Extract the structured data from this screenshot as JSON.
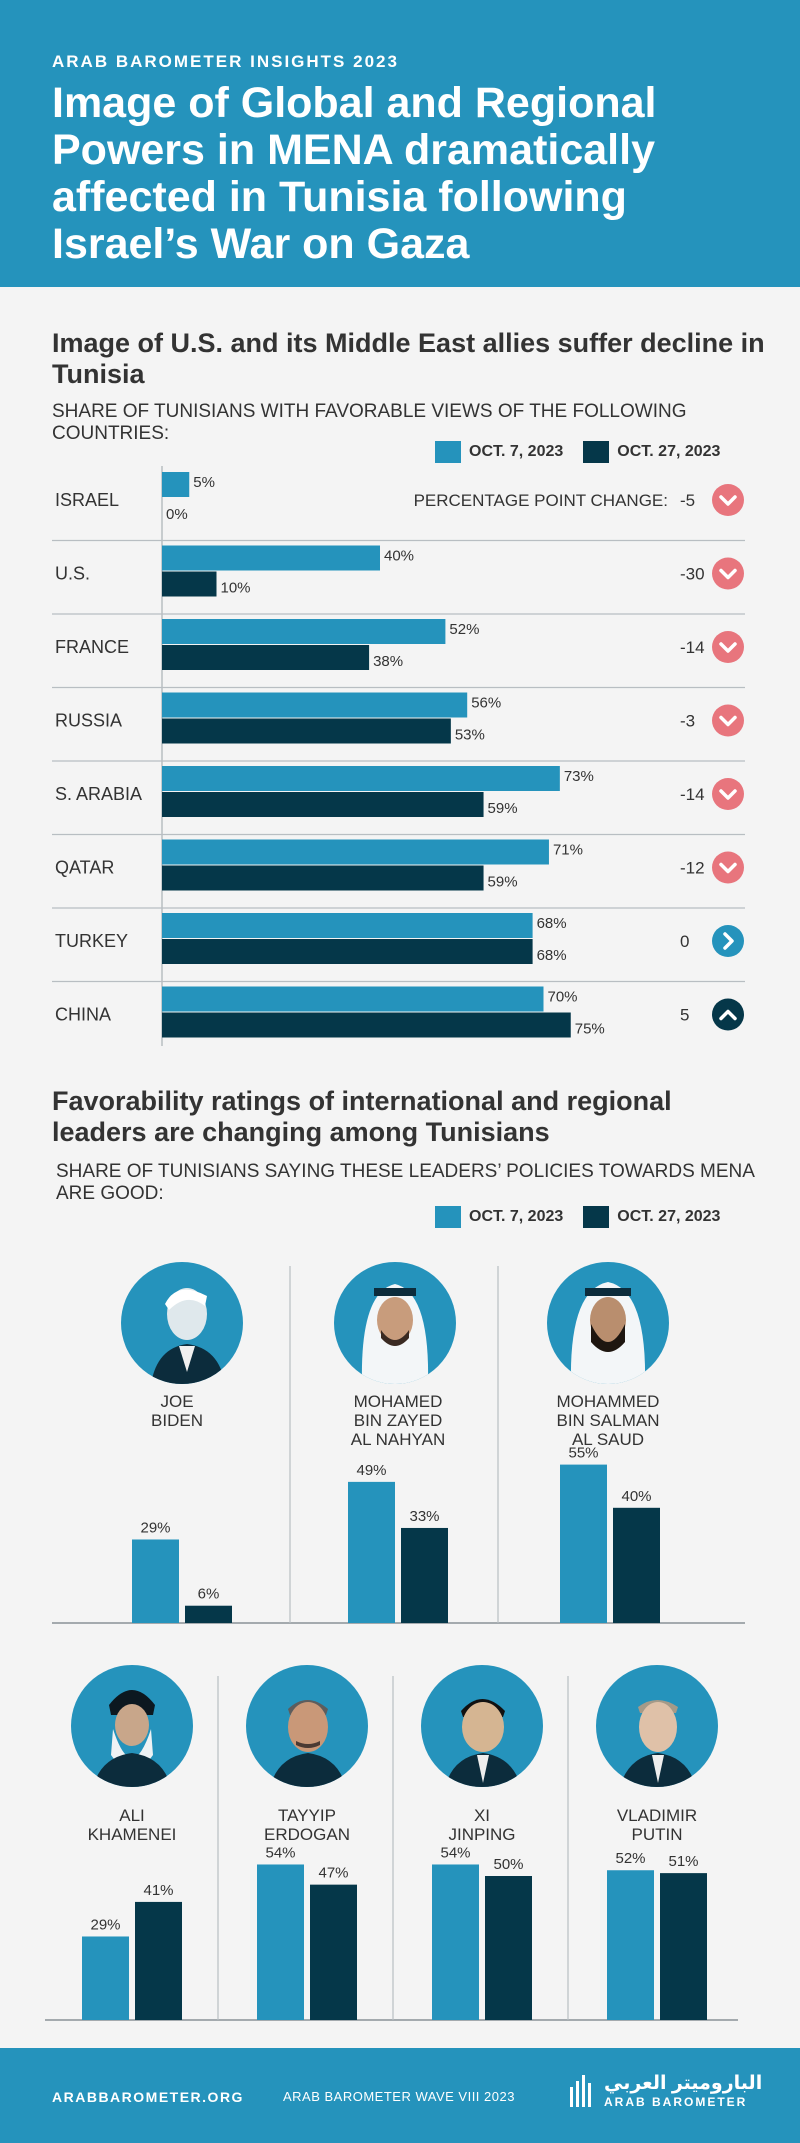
{
  "header": {
    "kicker": "ARAB BAROMETER INSIGHTS 2023",
    "title": "Image of Global and Regional Powers in MENA dramatically affected in Tunisia following Israel’s War on Gaza"
  },
  "section1": {
    "title": "Image of U.S. and its Middle East allies suffer decline in Tunisia",
    "subtitle": "Share of Tunisians with favorable views of the following countries:",
    "change_label": "PERCENTAGE POINT CHANGE:"
  },
  "section2": {
    "title": "Favorability ratings of international and regional leaders are changing among Tunisians",
    "subtitle": "Share of Tunisians saying these leaders’ policies towards MENA are good:"
  },
  "legend": {
    "series1": "OCT. 7, 2023",
    "series2": "OCT. 27, 2023"
  },
  "colors": {
    "oct7": "#2593bc",
    "oct27": "#053749",
    "down": "#e8757d",
    "neutral": "#2593bc",
    "up": "#053749"
  },
  "chart_data": [
    {
      "type": "bar",
      "orientation": "horizontal",
      "categories": [
        "ISRAEL",
        "U.S.",
        "FRANCE",
        "RUSSIA",
        "S. ARABIA",
        "QATAR",
        "TURKEY",
        "CHINA"
      ],
      "series": [
        {
          "name": "OCT. 7, 2023",
          "values": [
            5,
            40,
            52,
            56,
            73,
            71,
            68,
            70
          ]
        },
        {
          "name": "OCT. 27, 2023",
          "values": [
            0,
            10,
            38,
            53,
            59,
            59,
            68,
            75
          ]
        }
      ],
      "change": [
        -5,
        -30,
        -14,
        -3,
        -14,
        -12,
        0,
        5
      ],
      "change_icons": [
        "chevron-down-icon",
        "chevron-down-icon",
        "chevron-down-icon",
        "chevron-down-icon",
        "chevron-down-icon",
        "chevron-down-icon",
        "chevron-right-icon",
        "chevron-up-icon"
      ],
      "value_suffix": "%",
      "xlim": [
        0,
        100
      ]
    },
    {
      "type": "bar",
      "categories": [
        "JOE BIDEN",
        "MOHAMED BIN ZAYED AL NAHYAN",
        "MOHAMMED BIN SALMAN AL SAUD"
      ],
      "series": [
        {
          "name": "OCT. 7, 2023",
          "values": [
            29,
            49,
            55
          ]
        },
        {
          "name": "OCT. 27, 2023",
          "values": [
            6,
            33,
            40
          ]
        }
      ],
      "value_suffix": "%",
      "ylim": [
        0,
        100
      ]
    },
    {
      "type": "bar",
      "categories": [
        "ALI KHAMENEI",
        "TAYYIP ERDOGAN",
        "XI JINPING",
        "VLADIMIR PUTIN"
      ],
      "series": [
        {
          "name": "OCT. 7, 2023",
          "values": [
            29,
            54,
            54,
            52
          ]
        },
        {
          "name": "OCT. 27, 2023",
          "values": [
            41,
            47,
            50,
            51
          ]
        }
      ],
      "value_suffix": "%",
      "ylim": [
        0,
        100
      ]
    }
  ],
  "leaders_row1": [
    {
      "label": "JOE\nBIDEN",
      "icon": "biden-portrait-icon"
    },
    {
      "label": "MOHAMED\nBIN ZAYED\nAL NAHYAN",
      "icon": "bin-zayed-portrait-icon"
    },
    {
      "label": "MOHAMMED\nBIN SALMAN\nAL SAUD",
      "icon": "bin-salman-portrait-icon"
    }
  ],
  "leaders_row2": [
    {
      "label": "ALI\nKHAMENEI",
      "icon": "khamenei-portrait-icon"
    },
    {
      "label": "TAYYIP\nERDOGAN",
      "icon": "erdogan-portrait-icon"
    },
    {
      "label": "XI\nJINPING",
      "icon": "xi-portrait-icon"
    },
    {
      "label": "VLADIMIR\nPUTIN",
      "icon": "putin-portrait-icon"
    }
  ],
  "footer": {
    "url": "ARABBAROMETER.ORG",
    "wave": "ARAB BAROMETER WAVE VIII 2023",
    "logo_ar": "الباروميتر العربي",
    "logo_en": "ARAB BAROMETER"
  }
}
